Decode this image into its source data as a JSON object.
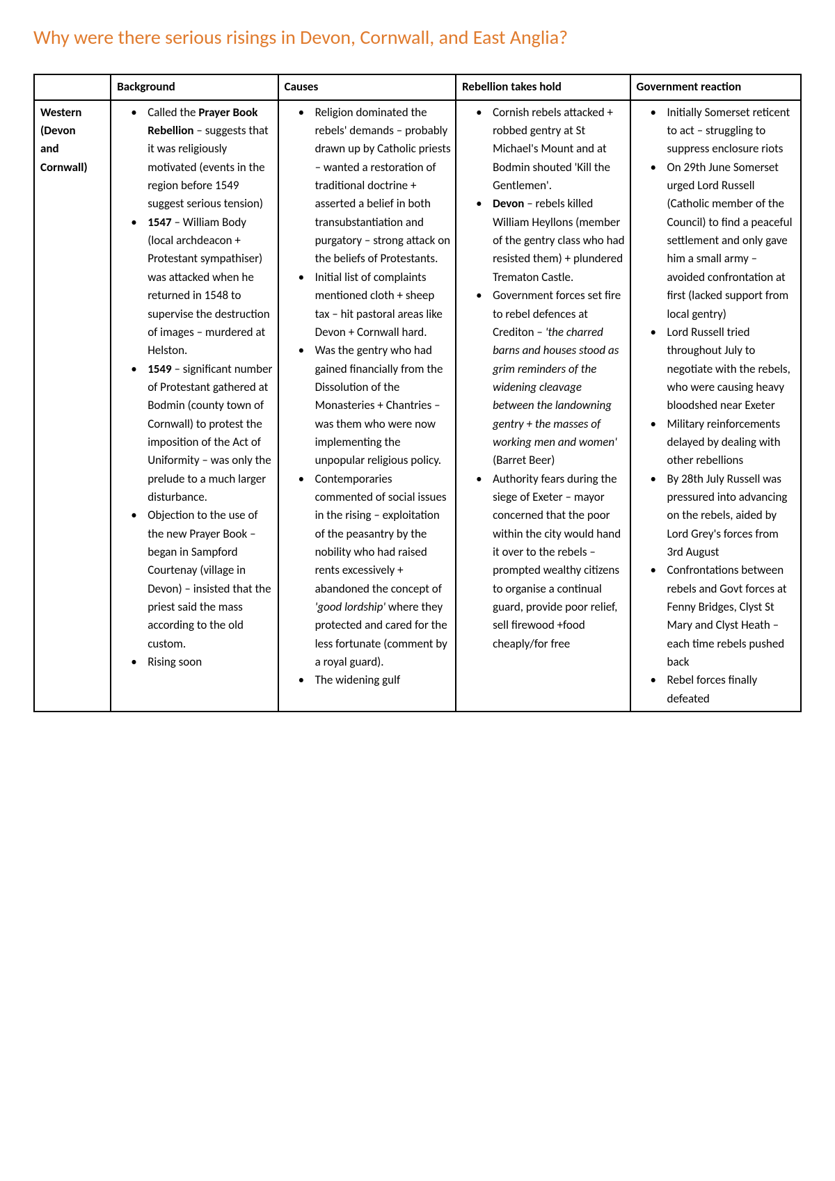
{
  "title": {
    "text": "Why were there serious risings in Devon, Cornwall, and East Anglia?",
    "color": "#e07b2e",
    "fontsize": 28
  },
  "table": {
    "border_color": "#000000",
    "background_color": "#ffffff",
    "body_fontsize": 17,
    "columns": [
      {
        "key": "rowlabel",
        "header": ""
      },
      {
        "key": "background",
        "header": "Background"
      },
      {
        "key": "causes",
        "header": "Causes"
      },
      {
        "key": "rebellion",
        "header": "Rebellion takes hold"
      },
      {
        "key": "reaction",
        "header": "Government reaction"
      }
    ],
    "rows": [
      {
        "label_lines": [
          "Western",
          "(Devon",
          "and",
          "Cornwall)"
        ],
        "background": [
          [
            {
              "t": "Called the "
            },
            {
              "t": "Prayer Book Rebellion",
              "b": true
            },
            {
              "t": " – suggests that it was religiously motivated (events in the region before 1549 suggest serious tension)"
            }
          ],
          [
            {
              "t": "1547",
              "b": true
            },
            {
              "t": " – William Body (local archdeacon + Protestant sympathiser) was attacked when he returned in 1548 to supervise the destruction of images – murdered at Helston."
            }
          ],
          [
            {
              "t": "1549",
              "b": true
            },
            {
              "t": " – significant number of Protestant gathered at Bodmin (county town of Cornwall) to protest the imposition of the Act of Uniformity – was only the prelude to a much larger disturbance."
            }
          ],
          [
            {
              "t": "Objection to the use of the new Prayer Book – began in Sampford Courtenay (village in Devon) – insisted that the priest said the mass according to the old custom."
            }
          ],
          [
            {
              "t": "Rising soon"
            }
          ]
        ],
        "causes": [
          [
            {
              "t": "Religion dominated the rebels' demands – probably drawn up by Catholic priests – wanted a restoration of traditional doctrine + asserted a belief in both transubstantiation and purgatory – strong attack on the beliefs of Protestants."
            }
          ],
          [
            {
              "t": "Initial list of complaints mentioned cloth + sheep tax – hit pastoral areas like Devon + Cornwall hard."
            }
          ],
          [
            {
              "t": "Was the gentry who had gained financially from the Dissolution of the Monasteries + Chantries – was them who were now implementing the unpopular religious policy."
            }
          ],
          [
            {
              "t": "Contemporaries commented of social issues in the rising – exploitation of the peasantry by the nobility who had raised rents excessively + abandoned the concept of "
            },
            {
              "t": "'good lordship'",
              "i": true
            },
            {
              "t": " where they protected and cared for the less fortunate (comment by a royal guard)."
            }
          ],
          [
            {
              "t": "The widening gulf"
            }
          ]
        ],
        "rebellion": [
          [
            {
              "t": "Cornish rebels attacked + robbed gentry at St Michael's Mount and at Bodmin shouted 'Kill the Gentlemen'."
            }
          ],
          [
            {
              "t": "Devon",
              "b": true
            },
            {
              "t": " – rebels killed William Heyllons (member of the gentry class who had resisted them) + plundered Trematon Castle."
            }
          ],
          [
            {
              "t": "Government forces set fire to rebel defences at Crediton – "
            },
            {
              "t": "'the charred barns and houses stood as grim reminders of the widening cleavage between the landowning gentry + the masses of working men and women'",
              "i": true
            },
            {
              "t": " (Barret Beer)"
            }
          ],
          [
            {
              "t": "Authority fears during the siege of Exeter – mayor concerned that the poor within the city would hand it over to the rebels – prompted wealthy citizens to organise a continual guard, provide poor relief, sell firewood +food cheaply/for free"
            }
          ]
        ],
        "reaction": [
          [
            {
              "t": "Initially Somerset reticent to act – struggling to suppress enclosure riots"
            }
          ],
          [
            {
              "t": "On 29th June Somerset urged Lord Russell (Catholic member of the Council) to find a peaceful settlement and only gave him a small army – avoided confrontation at first (lacked support from local gentry)"
            }
          ],
          [
            {
              "t": "Lord Russell tried throughout July to negotiate with the rebels, who were causing heavy bloodshed near Exeter"
            }
          ],
          [
            {
              "t": "Military reinforcements delayed by dealing with other rebellions"
            }
          ],
          [
            {
              "t": "By 28th July Russell was pressured into advancing on the rebels, aided by Lord Grey's forces from 3rd August"
            }
          ],
          [
            {
              "t": "Confrontations between rebels and Govt forces at Fenny Bridges, Clyst St Mary and Clyst Heath – each time rebels pushed back"
            }
          ],
          [
            {
              "t": "Rebel forces finally defeated"
            }
          ]
        ]
      }
    ]
  }
}
